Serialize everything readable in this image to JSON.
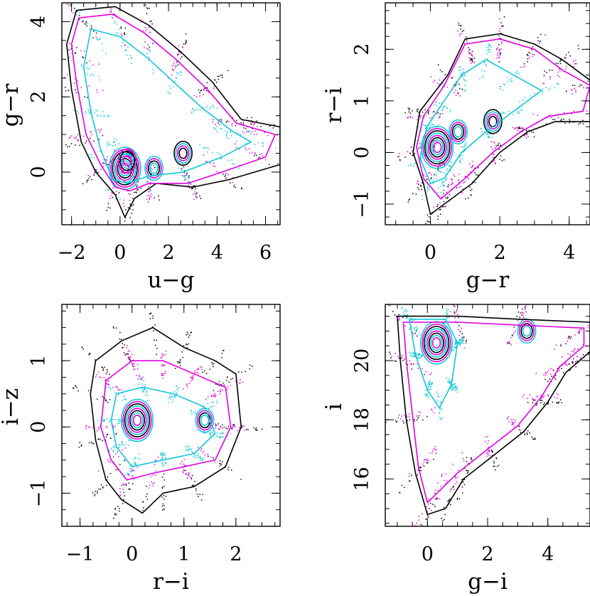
{
  "colors": {
    "black": "#000000",
    "magenta": "#e000e0",
    "cyan": "#10c8d8"
  },
  "chart_data": [
    {
      "type": "scatter",
      "title": "",
      "xlabel": "u−g",
      "ylabel": "g−r",
      "xlim": [
        -2.4,
        6.6
      ],
      "ylim": [
        -1.4,
        4.5
      ],
      "xticks": [
        -2,
        0,
        2,
        4,
        6
      ],
      "yticks": [
        0,
        2,
        4
      ],
      "xticklabels": [
        "−2",
        "0",
        "2",
        "4",
        "6"
      ],
      "yticklabels": [
        "0",
        "2",
        "4"
      ],
      "series": [
        {
          "name": "black",
          "color": "#000000",
          "outline": [
            [
              -1.8,
              4.3
            ],
            [
              -0.2,
              4.4
            ],
            [
              1.2,
              3.9
            ],
            [
              2.5,
              3.2
            ],
            [
              3.8,
              2.4
            ],
            [
              5.0,
              1.4
            ],
            [
              6.6,
              1.2
            ],
            [
              6.6,
              0.2
            ],
            [
              4.5,
              -0.2
            ],
            [
              3.0,
              -0.4
            ],
            [
              1.5,
              -0.3
            ],
            [
              0.6,
              -0.7
            ],
            [
              0.2,
              -1.2
            ],
            [
              -0.2,
              -0.6
            ],
            [
              -1.0,
              0.0
            ],
            [
              -1.6,
              0.8
            ],
            [
              -2.0,
              2.2
            ],
            [
              -2.2,
              3.4
            ]
          ]
        },
        {
          "name": "magenta",
          "color": "#e000e0",
          "outline": [
            [
              -1.7,
              4.1
            ],
            [
              -0.3,
              4.2
            ],
            [
              1.0,
              3.7
            ],
            [
              2.3,
              3.0
            ],
            [
              3.6,
              2.2
            ],
            [
              4.8,
              1.3
            ],
            [
              6.4,
              1.0
            ],
            [
              6.0,
              0.4
            ],
            [
              4.2,
              0.0
            ],
            [
              2.8,
              -0.3
            ],
            [
              1.2,
              -0.3
            ],
            [
              0.4,
              -0.5
            ],
            [
              -0.2,
              -0.4
            ],
            [
              -0.8,
              0.2
            ],
            [
              -1.4,
              1.0
            ],
            [
              -1.8,
              2.4
            ],
            [
              -2.0,
              3.4
            ]
          ]
        },
        {
          "name": "cyan",
          "color": "#10c8d8",
          "outline": [
            [
              -1.2,
              3.8
            ],
            [
              0.0,
              3.6
            ],
            [
              1.2,
              3.0
            ],
            [
              2.2,
              2.4
            ],
            [
              3.4,
              1.7
            ],
            [
              4.6,
              1.1
            ],
            [
              5.4,
              0.8
            ],
            [
              4.2,
              0.4
            ],
            [
              2.6,
              0.0
            ],
            [
              1.2,
              -0.1
            ],
            [
              0.3,
              -0.3
            ],
            [
              -0.3,
              -0.2
            ],
            [
              -0.8,
              0.6
            ],
            [
              -1.2,
              1.6
            ],
            [
              -1.5,
              2.8
            ]
          ]
        }
      ],
      "points": [
        [
          0.2,
          0.1
        ],
        [
          1.4,
          0.1
        ],
        [
          2.6,
          0.5
        ],
        [
          0.3,
          0.3
        ]
      ]
    },
    {
      "type": "scatter",
      "title": "",
      "xlabel": "g−r",
      "ylabel": "r−i",
      "xlim": [
        -1.3,
        4.6
      ],
      "ylim": [
        -1.4,
        2.9
      ],
      "xticks": [
        0,
        2,
        4
      ],
      "yticks": [
        -1,
        0,
        1,
        2
      ],
      "xticklabels": [
        "0",
        "2",
        "4"
      ],
      "yticklabels": [
        "−1",
        "0",
        "1",
        "2"
      ],
      "series": [
        {
          "name": "black",
          "color": "#000000",
          "outline": [
            [
              -0.3,
              0.8
            ],
            [
              0.5,
              1.5
            ],
            [
              1.0,
              2.2
            ],
            [
              2.0,
              2.3
            ],
            [
              3.0,
              2.1
            ],
            [
              3.8,
              1.8
            ],
            [
              4.6,
              1.4
            ],
            [
              4.6,
              0.6
            ],
            [
              3.6,
              0.6
            ],
            [
              2.8,
              0.4
            ],
            [
              2.0,
              0.0
            ],
            [
              1.2,
              -0.6
            ],
            [
              0.4,
              -1.0
            ],
            [
              0.0,
              -1.2
            ],
            [
              -0.2,
              -0.6
            ],
            [
              -0.5,
              0.0
            ]
          ]
        },
        {
          "name": "magenta",
          "color": "#e000e0",
          "outline": [
            [
              -0.2,
              0.7
            ],
            [
              0.4,
              1.3
            ],
            [
              1.0,
              2.1
            ],
            [
              2.0,
              2.2
            ],
            [
              3.0,
              2.0
            ],
            [
              3.8,
              1.6
            ],
            [
              4.6,
              1.3
            ],
            [
              4.4,
              0.8
            ],
            [
              3.4,
              0.7
            ],
            [
              2.6,
              0.4
            ],
            [
              1.8,
              0.0
            ],
            [
              1.0,
              -0.5
            ],
            [
              0.3,
              -0.9
            ],
            [
              -0.2,
              -0.5
            ],
            [
              -0.4,
              0.1
            ]
          ]
        },
        {
          "name": "cyan",
          "color": "#10c8d8",
          "outline": [
            [
              -0.1,
              0.5
            ],
            [
              0.3,
              0.9
            ],
            [
              0.9,
              1.5
            ],
            [
              1.6,
              1.8
            ],
            [
              2.4,
              1.5
            ],
            [
              3.2,
              1.2
            ],
            [
              2.4,
              0.8
            ],
            [
              1.6,
              0.4
            ],
            [
              0.9,
              0.0
            ],
            [
              0.4,
              -0.5
            ],
            [
              0.0,
              -0.6
            ],
            [
              -0.3,
              -0.1
            ]
          ]
        }
      ],
      "points": [
        [
          0.2,
          0.1
        ],
        [
          0.8,
          0.4
        ],
        [
          1.8,
          0.6
        ]
      ]
    },
    {
      "type": "scatter",
      "title": "",
      "xlabel": "r−i",
      "ylabel": "i−z",
      "xlim": [
        -1.35,
        2.85
      ],
      "ylim": [
        -1.5,
        1.85
      ],
      "xticks": [
        -1,
        0,
        1,
        2
      ],
      "yticks": [
        -1,
        0,
        1
      ],
      "xticklabels": [
        "−1",
        "0",
        "1",
        "2"
      ],
      "yticklabels": [
        "−1",
        "0",
        "1"
      ],
      "series": [
        {
          "name": "black",
          "color": "#000000",
          "outline": [
            [
              -0.7,
              1.0
            ],
            [
              -0.2,
              1.3
            ],
            [
              0.4,
              1.5
            ],
            [
              1.0,
              1.2
            ],
            [
              1.6,
              1.0
            ],
            [
              2.0,
              0.8
            ],
            [
              2.1,
              0.0
            ],
            [
              1.8,
              -0.6
            ],
            [
              1.2,
              -0.9
            ],
            [
              0.6,
              -1.0
            ],
            [
              0.2,
              -1.3
            ],
            [
              -0.2,
              -1.1
            ],
            [
              -0.5,
              -0.8
            ],
            [
              -0.7,
              -0.2
            ],
            [
              -0.8,
              0.5
            ]
          ]
        },
        {
          "name": "magenta",
          "color": "#e000e0",
          "outline": [
            [
              -0.5,
              0.7
            ],
            [
              0.0,
              1.0
            ],
            [
              0.6,
              1.0
            ],
            [
              1.2,
              0.8
            ],
            [
              1.8,
              0.6
            ],
            [
              1.9,
              0.0
            ],
            [
              1.6,
              -0.5
            ],
            [
              1.0,
              -0.6
            ],
            [
              0.4,
              -0.7
            ],
            [
              -0.1,
              -0.8
            ],
            [
              -0.4,
              -0.5
            ],
            [
              -0.6,
              0.0
            ]
          ]
        },
        {
          "name": "cyan",
          "color": "#10c8d8",
          "outline": [
            [
              -0.3,
              0.5
            ],
            [
              0.2,
              0.6
            ],
            [
              0.8,
              0.5
            ],
            [
              1.4,
              0.3
            ],
            [
              1.6,
              -0.1
            ],
            [
              1.2,
              -0.4
            ],
            [
              0.6,
              -0.5
            ],
            [
              0.0,
              -0.6
            ],
            [
              -0.3,
              -0.3
            ],
            [
              -0.4,
              0.1
            ]
          ]
        }
      ],
      "points": [
        [
          0.1,
          0.1
        ],
        [
          1.4,
          0.1
        ]
      ]
    },
    {
      "type": "scatter",
      "title": "",
      "xlabel": "g−i",
      "ylabel": "i",
      "xlim": [
        -1.4,
        5.4
      ],
      "ylim": [
        14.4,
        21.9
      ],
      "xticks": [
        0,
        2,
        4
      ],
      "yticks": [
        16,
        18,
        20
      ],
      "xticklabels": [
        "0",
        "2",
        "4"
      ],
      "yticklabels": [
        "16",
        "18",
        "20"
      ],
      "series": [
        {
          "name": "black",
          "color": "#000000",
          "outline": [
            [
              -1.0,
              21.5
            ],
            [
              1.0,
              21.5
            ],
            [
              3.0,
              21.4
            ],
            [
              5.4,
              21.3
            ],
            [
              5.4,
              20.3
            ],
            [
              4.6,
              19.6
            ],
            [
              4.0,
              18.6
            ],
            [
              3.2,
              17.6
            ],
            [
              2.2,
              16.8
            ],
            [
              1.2,
              16.0
            ],
            [
              0.6,
              15.0
            ],
            [
              0.0,
              14.8
            ],
            [
              -0.4,
              16.2
            ],
            [
              -0.7,
              18.0
            ],
            [
              -0.9,
              20.0
            ]
          ]
        },
        {
          "name": "magenta",
          "color": "#e000e0",
          "outline": [
            [
              -0.8,
              21.3
            ],
            [
              1.0,
              21.3
            ],
            [
              3.0,
              21.2
            ],
            [
              5.2,
              21.1
            ],
            [
              5.2,
              20.5
            ],
            [
              4.4,
              19.8
            ],
            [
              3.8,
              18.8
            ],
            [
              3.0,
              17.8
            ],
            [
              2.0,
              17.0
            ],
            [
              1.0,
              16.2
            ],
            [
              0.4,
              15.6
            ],
            [
              0.0,
              15.2
            ],
            [
              -0.3,
              16.4
            ],
            [
              -0.5,
              18.2
            ],
            [
              -0.7,
              20.0
            ]
          ]
        },
        {
          "name": "cyan",
          "color": "#10c8d8",
          "outline": [
            [
              -0.6,
              21.4
            ],
            [
              0.6,
              21.4
            ],
            [
              1.0,
              20.6
            ],
            [
              0.8,
              19.2
            ],
            [
              0.4,
              18.4
            ],
            [
              0.0,
              19.0
            ],
            [
              -0.4,
              20.2
            ]
          ]
        }
      ],
      "points": [
        [
          0.3,
          20.6
        ],
        [
          3.3,
          21.0
        ]
      ]
    }
  ]
}
